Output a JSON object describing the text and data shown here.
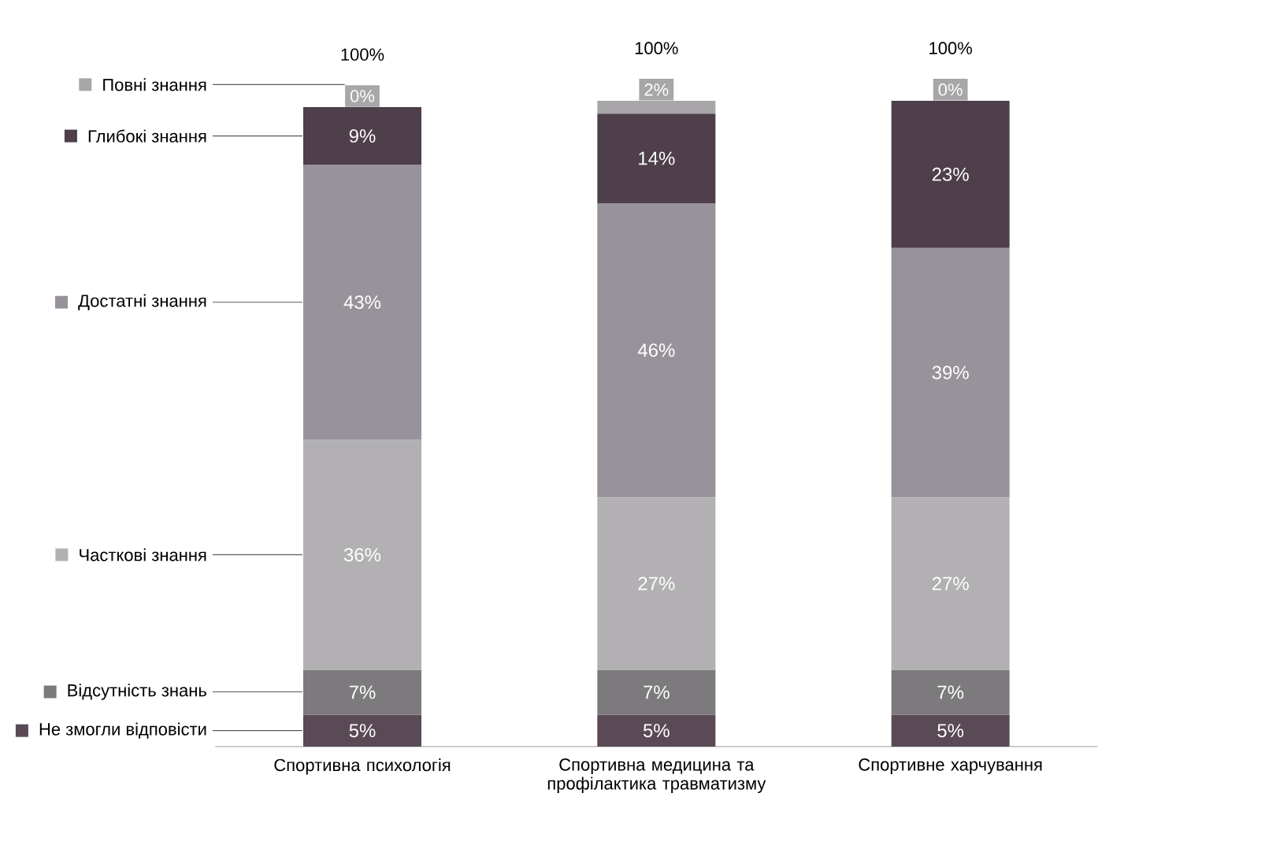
{
  "chart_data": {
    "type": "bar",
    "stacked": true,
    "categories": [
      "Спортивна психологія",
      "Спортивна медицина та профілактика травматизму",
      "Спортивне харчування"
    ],
    "series": [
      {
        "name": "Не змогли відповісти",
        "color": "#5a4a55",
        "values": [
          5,
          5,
          5
        ],
        "value_labels": [
          "5%",
          "5%",
          "5%"
        ]
      },
      {
        "name": "Відсутність знань",
        "color": "#7c7a7c",
        "values": [
          7,
          7,
          7
        ],
        "value_labels": [
          "7%",
          "7%",
          "7%"
        ]
      },
      {
        "name": "Часткові знання",
        "color": "#b2b0b2",
        "values": [
          36,
          27,
          27
        ],
        "value_labels": [
          "36%",
          "27%",
          "27%"
        ]
      },
      {
        "name": "Достатні знання",
        "color": "#98929a",
        "values": [
          43,
          46,
          39
        ],
        "value_labels": [
          "43%",
          "46%",
          "39%"
        ]
      },
      {
        "name": "Глибокі знання",
        "color": "#4e3f4a",
        "values": [
          9,
          14,
          23
        ],
        "value_labels": [
          "9%",
          "14%",
          "23%"
        ]
      },
      {
        "name": "Повні знання",
        "color": "#a8a6a8",
        "values": [
          0,
          2,
          0
        ],
        "value_labels": [
          "0%",
          "2%",
          "0%"
        ]
      }
    ],
    "totals": [
      "100%",
      "100%",
      "100%"
    ],
    "legend": "left"
  }
}
